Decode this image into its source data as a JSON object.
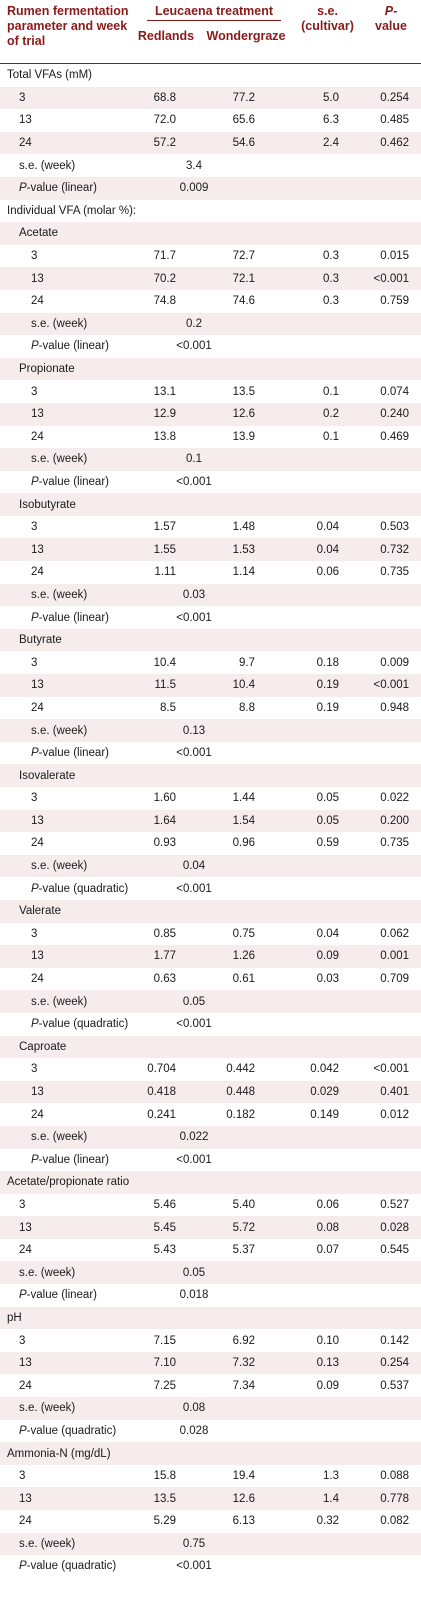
{
  "header": {
    "col1": "Rumen fermentation parameter and week of trial",
    "group": "Leucaena treatment",
    "redlands": "Redlands",
    "wondergraze": "Wondergraze",
    "se": "s.e. (cultivar)",
    "p_line1": "P-",
    "p_line2": "value"
  },
  "rows": [
    {
      "type": "section",
      "indent": 0,
      "label": "Total VFAs (mM)"
    },
    {
      "type": "data",
      "indent": 1,
      "label": "3",
      "redlands": "68.8",
      "wondergraze": "77.2",
      "se": "5.0",
      "p": "0.254"
    },
    {
      "type": "data",
      "indent": 1,
      "label": "13",
      "redlands": "72.0",
      "wondergraze": "65.6",
      "se": "6.3",
      "p": "0.485"
    },
    {
      "type": "data",
      "indent": 1,
      "label": "24",
      "redlands": "57.2",
      "wondergraze": "54.6",
      "se": "2.4",
      "p": "0.462"
    },
    {
      "type": "pooled",
      "indent": 1,
      "label": "s.e. (week)",
      "value": "3.4"
    },
    {
      "type": "pooled",
      "indent": 1,
      "italic_prefix": "P",
      "label": "-value (linear)",
      "value": "0.009"
    },
    {
      "type": "section",
      "indent": 0,
      "label": "Individual VFA (molar %):"
    },
    {
      "type": "section",
      "indent": 1,
      "label": "Acetate"
    },
    {
      "type": "data",
      "indent": 2,
      "label": "3",
      "redlands": "71.7",
      "wondergraze": "72.7",
      "se": "0.3",
      "p": "0.015"
    },
    {
      "type": "data",
      "indent": 2,
      "label": "13",
      "redlands": "70.2",
      "wondergraze": "72.1",
      "se": "0.3",
      "p": "<0.001"
    },
    {
      "type": "data",
      "indent": 2,
      "label": "24",
      "redlands": "74.8",
      "wondergraze": "74.6",
      "se": "0.3",
      "p": "0.759"
    },
    {
      "type": "pooled",
      "indent": 2,
      "label": "s.e. (week)",
      "value": "0.2"
    },
    {
      "type": "pooled",
      "indent": 2,
      "italic_prefix": "P",
      "label": "-value (linear)",
      "value": "<0.001"
    },
    {
      "type": "section",
      "indent": 1,
      "label": "Propionate"
    },
    {
      "type": "data",
      "indent": 2,
      "label": "3",
      "redlands": "13.1",
      "wondergraze": "13.5",
      "se": "0.1",
      "p": "0.074"
    },
    {
      "type": "data",
      "indent": 2,
      "label": "13",
      "redlands": "12.9",
      "wondergraze": "12.6",
      "se": "0.2",
      "p": "0.240"
    },
    {
      "type": "data",
      "indent": 2,
      "label": "24",
      "redlands": "13.8",
      "wondergraze": "13.9",
      "se": "0.1",
      "p": "0.469"
    },
    {
      "type": "pooled",
      "indent": 2,
      "label": "s.e. (week)",
      "value": "0.1"
    },
    {
      "type": "pooled",
      "indent": 2,
      "italic_prefix": "P",
      "label": "-value (linear)",
      "value": "<0.001"
    },
    {
      "type": "section",
      "indent": 1,
      "label": "Isobutyrate"
    },
    {
      "type": "data",
      "indent": 2,
      "label": "3",
      "redlands": "1.57",
      "wondergraze": "1.48",
      "se": "0.04",
      "p": "0.503"
    },
    {
      "type": "data",
      "indent": 2,
      "label": "13",
      "redlands": "1.55",
      "wondergraze": "1.53",
      "se": "0.04",
      "p": "0.732"
    },
    {
      "type": "data",
      "indent": 2,
      "label": "24",
      "redlands": "1.11",
      "wondergraze": "1.14",
      "se": "0.06",
      "p": "0.735"
    },
    {
      "type": "pooled",
      "indent": 2,
      "label": "s.e. (week)",
      "value": "0.03"
    },
    {
      "type": "pooled",
      "indent": 2,
      "italic_prefix": "P",
      "label": "-value (linear)",
      "value": "<0.001"
    },
    {
      "type": "section",
      "indent": 1,
      "label": "Butyrate"
    },
    {
      "type": "data",
      "indent": 2,
      "label": "3",
      "redlands": "10.4",
      "wondergraze": "9.7",
      "se": "0.18",
      "p": "0.009"
    },
    {
      "type": "data",
      "indent": 2,
      "label": "13",
      "redlands": "11.5",
      "wondergraze": "10.4",
      "se": "0.19",
      "p": "<0.001"
    },
    {
      "type": "data",
      "indent": 2,
      "label": "24",
      "redlands": "8.5",
      "wondergraze": "8.8",
      "se": "0.19",
      "p": "0.948"
    },
    {
      "type": "pooled",
      "indent": 2,
      "label": "s.e. (week)",
      "value": "0.13"
    },
    {
      "type": "pooled",
      "indent": 2,
      "italic_prefix": "P",
      "label": "-value (linear)",
      "value": "<0.001"
    },
    {
      "type": "section",
      "indent": 1,
      "label": "Isovalerate"
    },
    {
      "type": "data",
      "indent": 2,
      "label": "3",
      "redlands": "1.60",
      "wondergraze": "1.44",
      "se": "0.05",
      "p": "0.022"
    },
    {
      "type": "data",
      "indent": 2,
      "label": "13",
      "redlands": "1.64",
      "wondergraze": "1.54",
      "se": "0.05",
      "p": "0.200"
    },
    {
      "type": "data",
      "indent": 2,
      "label": "24",
      "redlands": "0.93",
      "wondergraze": "0.96",
      "se": "0.59",
      "p": "0.735"
    },
    {
      "type": "pooled",
      "indent": 2,
      "label": "s.e. (week)",
      "value": "0.04"
    },
    {
      "type": "pooled",
      "indent": 2,
      "italic_prefix": "P",
      "label": "-value (quadratic)",
      "value": "<0.001"
    },
    {
      "type": "section",
      "indent": 1,
      "label": "Valerate"
    },
    {
      "type": "data",
      "indent": 2,
      "label": "3",
      "redlands": "0.85",
      "wondergraze": "0.75",
      "se": "0.04",
      "p": "0.062"
    },
    {
      "type": "data",
      "indent": 2,
      "label": "13",
      "redlands": "1.77",
      "wondergraze": "1.26",
      "se": "0.09",
      "p": "0.001"
    },
    {
      "type": "data",
      "indent": 2,
      "label": "24",
      "redlands": "0.63",
      "wondergraze": "0.61",
      "se": "0.03",
      "p": "0.709"
    },
    {
      "type": "pooled",
      "indent": 2,
      "label": "s.e. (week)",
      "value": "0.05"
    },
    {
      "type": "pooled",
      "indent": 2,
      "italic_prefix": "P",
      "label": "-value (quadratic)",
      "value": "<0.001"
    },
    {
      "type": "section",
      "indent": 1,
      "label": "Caproate"
    },
    {
      "type": "data",
      "indent": 2,
      "label": "3",
      "redlands": "0.704",
      "wondergraze": "0.442",
      "se": "0.042",
      "p": "<0.001"
    },
    {
      "type": "data",
      "indent": 2,
      "label": "13",
      "redlands": "0.418",
      "wondergraze": "0.448",
      "se": "0.029",
      "p": "0.401"
    },
    {
      "type": "data",
      "indent": 2,
      "label": "24",
      "redlands": "0.241",
      "wondergraze": "0.182",
      "se": "0.149",
      "p": "0.012"
    },
    {
      "type": "pooled",
      "indent": 2,
      "label": "s.e. (week)",
      "value": "0.022"
    },
    {
      "type": "pooled",
      "indent": 2,
      "italic_prefix": "P",
      "label": "-value (linear)",
      "value": "<0.001"
    },
    {
      "type": "section",
      "indent": 0,
      "label": "Acetate/propionate ratio"
    },
    {
      "type": "data",
      "indent": 1,
      "label": "3",
      "redlands": "5.46",
      "wondergraze": "5.40",
      "se": "0.06",
      "p": "0.527"
    },
    {
      "type": "data",
      "indent": 1,
      "label": "13",
      "redlands": "5.45",
      "wondergraze": "5.72",
      "se": "0.08",
      "p": "0.028"
    },
    {
      "type": "data",
      "indent": 1,
      "label": "24",
      "redlands": "5.43",
      "wondergraze": "5.37",
      "se": "0.07",
      "p": "0.545"
    },
    {
      "type": "pooled",
      "indent": 1,
      "label": "s.e. (week)",
      "value": "0.05"
    },
    {
      "type": "pooled",
      "indent": 1,
      "italic_prefix": "P",
      "label": "-value (linear)",
      "value": "0.018"
    },
    {
      "type": "section",
      "indent": 0,
      "label": "pH"
    },
    {
      "type": "data",
      "indent": 1,
      "label": "3",
      "redlands": "7.15",
      "wondergraze": "6.92",
      "se": "0.10",
      "p": "0.142"
    },
    {
      "type": "data",
      "indent": 1,
      "label": "13",
      "redlands": "7.10",
      "wondergraze": "7.32",
      "se": "0.13",
      "p": "0.254"
    },
    {
      "type": "data",
      "indent": 1,
      "label": "24",
      "redlands": "7.25",
      "wondergraze": "7.34",
      "se": "0.09",
      "p": "0.537"
    },
    {
      "type": "pooled",
      "indent": 1,
      "label": "s.e. (week)",
      "value": "0.08"
    },
    {
      "type": "pooled",
      "indent": 1,
      "italic_prefix": "P",
      "label": "-value (quadratic)",
      "value": "0.028"
    },
    {
      "type": "section",
      "indent": 0,
      "label": "Ammonia-N (mg/dL)"
    },
    {
      "type": "data",
      "indent": 1,
      "label": "3",
      "redlands": "15.8",
      "wondergraze": "19.4",
      "se": "1.3",
      "p": "0.088"
    },
    {
      "type": "data",
      "indent": 1,
      "label": "13",
      "redlands": "13.5",
      "wondergraze": "12.6",
      "se": "1.4",
      "p": "0.778"
    },
    {
      "type": "data",
      "indent": 1,
      "label": "24",
      "redlands": "5.29",
      "wondergraze": "6.13",
      "se": "0.32",
      "p": "0.082"
    },
    {
      "type": "pooled",
      "indent": 1,
      "label": "s.e. (week)",
      "value": "0.75"
    },
    {
      "type": "pooled",
      "indent": 1,
      "italic_prefix": "P",
      "label": "-value (quadratic)",
      "value": "<0.001"
    }
  ]
}
